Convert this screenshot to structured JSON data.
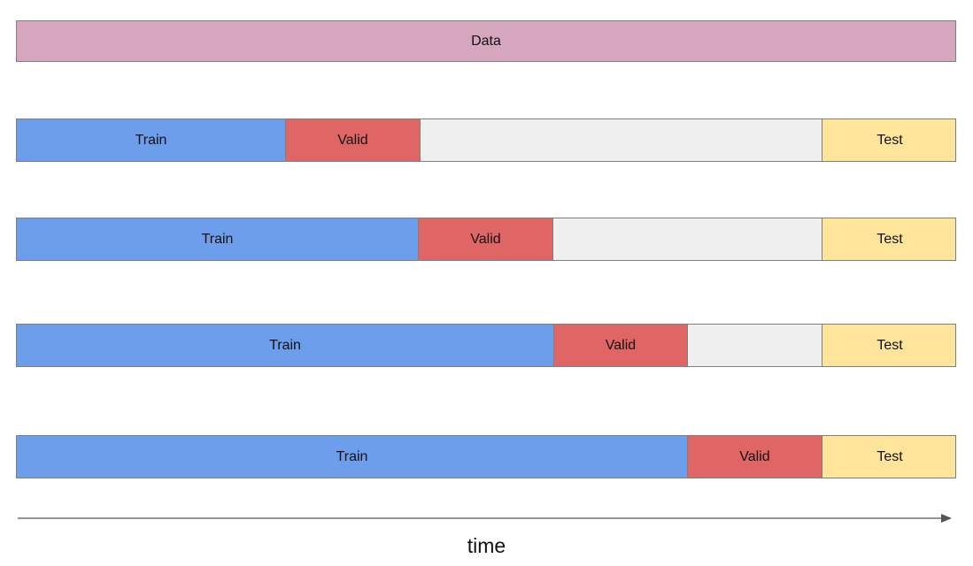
{
  "diagram": {
    "data_label": "Data",
    "folds": [
      {
        "segments": [
          {
            "type": "train",
            "label": "Train"
          },
          {
            "type": "valid",
            "label": "Valid"
          },
          {
            "type": "gap",
            "label": ""
          },
          {
            "type": "test",
            "label": "Test"
          }
        ]
      },
      {
        "segments": [
          {
            "type": "train",
            "label": "Train"
          },
          {
            "type": "valid",
            "label": "Valid"
          },
          {
            "type": "gap",
            "label": ""
          },
          {
            "type": "test",
            "label": "Test"
          }
        ]
      },
      {
        "segments": [
          {
            "type": "train",
            "label": "Train"
          },
          {
            "type": "valid",
            "label": "Valid"
          },
          {
            "type": "gap",
            "label": ""
          },
          {
            "type": "test",
            "label": "Test"
          }
        ]
      },
      {
        "segments": [
          {
            "type": "train",
            "label": "Train"
          },
          {
            "type": "valid",
            "label": "Valid"
          },
          {
            "type": "test",
            "label": "Test"
          }
        ]
      }
    ],
    "time_label": "time",
    "colors": {
      "data": "#d5a6bd",
      "train": "#6d9eeb",
      "valid": "#e06666",
      "gap": "#efefef",
      "test": "#ffe599",
      "border": "#7f7f7f"
    }
  }
}
